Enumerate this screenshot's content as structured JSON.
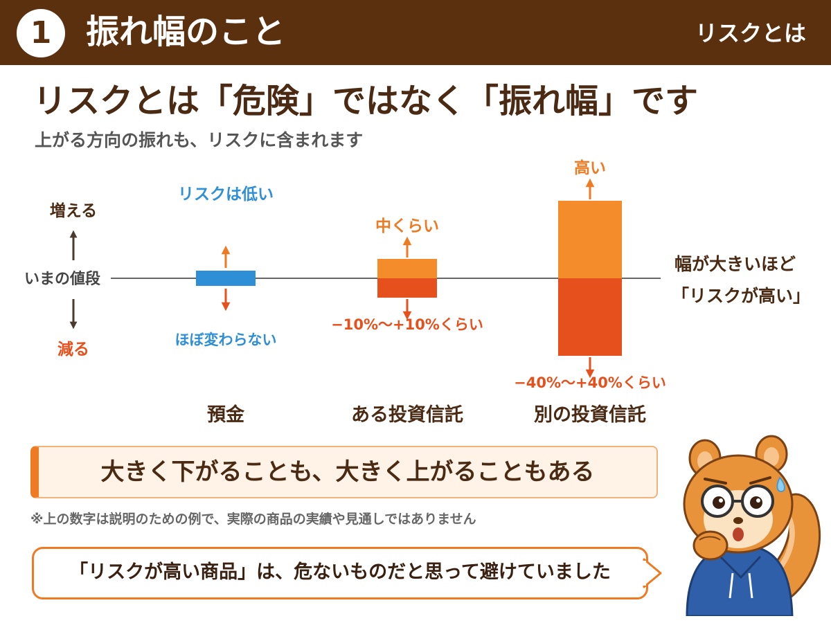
{
  "header": {
    "badge": "1",
    "title": "振れ幅のこと",
    "section": "リスクとは"
  },
  "main": {
    "title": "リスクとは「危険」ではなく「振れ幅」です",
    "subtitle": "上がる方向の振れも、リスクに含まれます"
  },
  "chart_data": {
    "type": "bar",
    "baseline_label": "いまの値段",
    "up_label": "増える",
    "down_label": "減る",
    "side_note": [
      "幅が大きいほど",
      "「リスクが高い」"
    ],
    "categories": [
      "預金",
      "ある投資信託",
      "別の投資信託"
    ],
    "items": [
      {
        "name": "預金",
        "risk_label": "リスクは低い",
        "range_label": "ほぼ変わらない",
        "range": [
          -1,
          1
        ],
        "color": "#2e8fd6"
      },
      {
        "name": "ある投資信託",
        "risk_label": "中くらい",
        "range_label": "−10%〜+10%くらい",
        "range": [
          -10,
          10
        ],
        "color_up": "#f58c2c",
        "color_down": "#e6501c"
      },
      {
        "name": "別の投資信託",
        "risk_label": "高い",
        "range_label": "−40%〜+40%くらい",
        "range": [
          -40,
          40
        ],
        "color_up": "#f58c2c",
        "color_down": "#e6501c"
      }
    ],
    "unit": "%"
  },
  "keypoint": "大きく下がることも、大きく上がることもある",
  "disclaimer": "※上の数字は説明のための例で、実際の商品の実績や見通しではありません",
  "speech": "「リスクが高い商品」は、危ないものだと思って避けていました",
  "mascot": {
    "icon": "squirrel-mascot-icon"
  }
}
